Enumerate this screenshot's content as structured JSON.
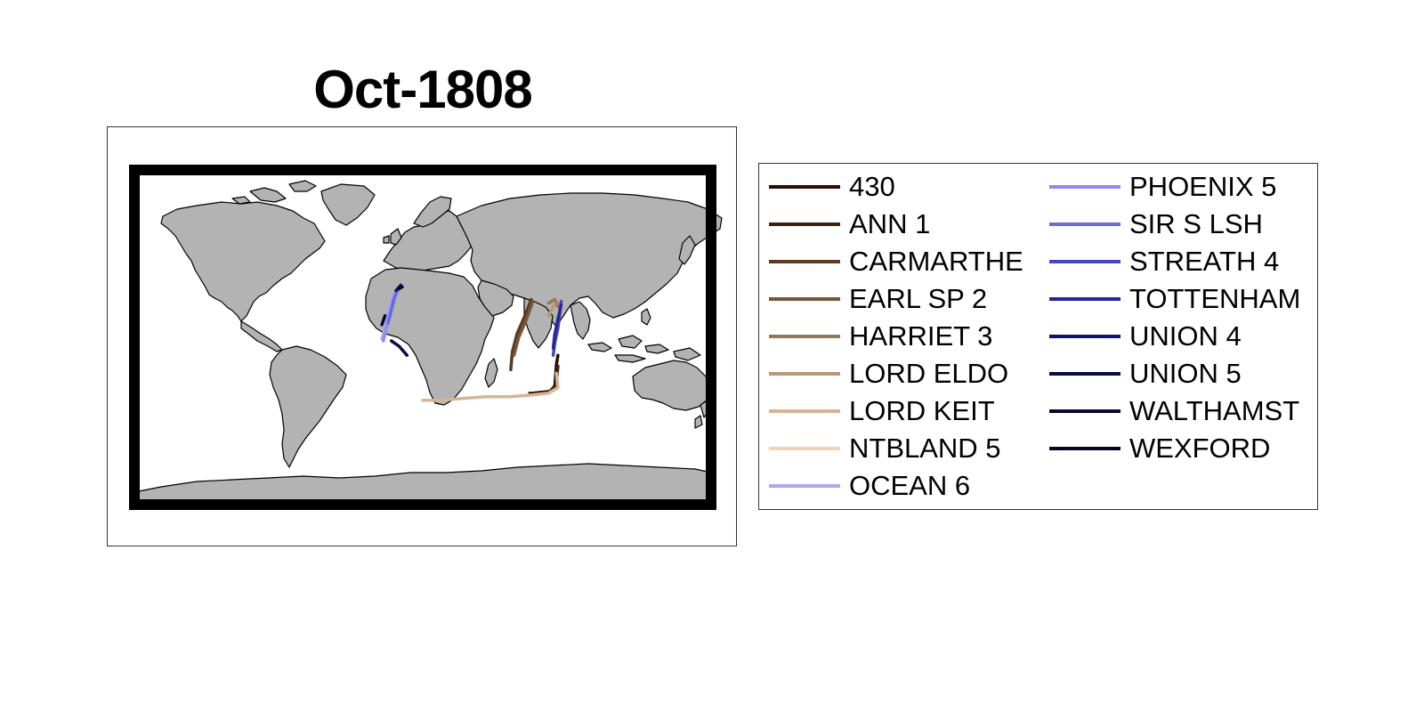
{
  "title": "Oct-1808",
  "map": {
    "land_color": "#b3b3b3",
    "coast_color": "#000000",
    "frame_color": "#000000"
  },
  "legend": {
    "items": [
      {
        "label": "430",
        "color": "#2b0d05"
      },
      {
        "label": "ANN 1",
        "color": "#3d2010"
      },
      {
        "label": "CARMARTHE",
        "color": "#5a3a22"
      },
      {
        "label": "EARL SP 2",
        "color": "#76573c"
      },
      {
        "label": "HARRIET 3",
        "color": "#967659"
      },
      {
        "label": "LORD ELDO",
        "color": "#b8977a"
      },
      {
        "label": "LORD KEIT",
        "color": "#d4b597"
      },
      {
        "label": "NTBLAND 5",
        "color": "#f2d4b8"
      },
      {
        "label": "OCEAN 6",
        "color": "#a9a9f2"
      },
      {
        "label": "PHOENIX 5",
        "color": "#8d8df0"
      },
      {
        "label": "SIR S LSH",
        "color": "#6a6ade"
      },
      {
        "label": "STREATH 4",
        "color": "#4646c0"
      },
      {
        "label": "TOTTENHAM",
        "color": "#262696"
      },
      {
        "label": "UNION 4",
        "color": "#111170"
      },
      {
        "label": "UNION 5",
        "color": "#0b0b4d"
      },
      {
        "label": "WALTHAMST",
        "color": "#090930"
      },
      {
        "label": "WEXFORD",
        "color": "#050520"
      }
    ]
  },
  "tracks": [
    {
      "ship": "430",
      "points": [
        [
          86,
          -10
        ],
        [
          85,
          -15
        ],
        [
          84,
          -27
        ],
        [
          81,
          -30
        ],
        [
          70,
          -31
        ]
      ]
    },
    {
      "ship": "ANN 1",
      "points": [
        [
          86,
          -16
        ],
        [
          85,
          -24
        ],
        [
          83,
          -29
        ],
        [
          80,
          -31
        ],
        [
          68,
          -31
        ]
      ]
    },
    {
      "ship": "CARMARTHE",
      "points": [
        [
          69,
          21
        ],
        [
          65,
          12
        ],
        [
          60,
          2
        ],
        [
          57,
          -8
        ],
        [
          56,
          -18
        ]
      ]
    },
    {
      "ship": "EARL SP 2",
      "points": [
        [
          70,
          20
        ],
        [
          66,
          10
        ],
        [
          61,
          0
        ],
        [
          58,
          -10
        ]
      ]
    },
    {
      "ship": "HARRIET 3",
      "points": [
        [
          80,
          19
        ],
        [
          84,
          21
        ],
        [
          86,
          17
        ]
      ]
    },
    {
      "ship": "LORD ELDO",
      "points": [
        [
          84,
          19
        ],
        [
          82,
          15
        ],
        [
          80,
          12
        ]
      ]
    },
    {
      "ship": "LORD KEIT",
      "points": [
        [
          85,
          -20
        ],
        [
          86,
          -28
        ],
        [
          80,
          -31
        ],
        [
          70,
          -32
        ],
        [
          55,
          -33
        ],
        [
          40,
          -33
        ],
        [
          25,
          -34
        ],
        [
          10,
          -35
        ],
        [
          0,
          -35
        ]
      ]
    },
    {
      "ship": "OCEAN 6",
      "points": [
        [
          -18,
          25
        ],
        [
          -20,
          20
        ],
        [
          -22,
          15
        ],
        [
          -23,
          10
        ],
        [
          -24,
          5
        ],
        [
          -26,
          -1
        ]
      ]
    },
    {
      "ship": "PHOENIX 5",
      "points": [
        [
          -17,
          26
        ],
        [
          -19,
          20
        ],
        [
          -21,
          13
        ],
        [
          -23,
          6
        ],
        [
          -25,
          -2
        ]
      ]
    },
    {
      "ship": "SIR S LSH",
      "points": [
        [
          -15,
          28
        ],
        [
          -18,
          22
        ],
        [
          -20,
          15
        ],
        [
          -22,
          8
        ]
      ]
    },
    {
      "ship": "STREATH 4",
      "points": [
        [
          88,
          20
        ],
        [
          87,
          12
        ],
        [
          86,
          5
        ],
        [
          84,
          -3
        ],
        [
          83,
          -10
        ]
      ]
    },
    {
      "ship": "TOTTENHAM",
      "points": [
        [
          88,
          18
        ],
        [
          86,
          10
        ],
        [
          84,
          2
        ],
        [
          83,
          -6
        ]
      ]
    },
    {
      "ship": "UNION 4",
      "points": [
        [
          -14,
          29
        ],
        [
          -17,
          26
        ]
      ]
    },
    {
      "ship": "UNION 5",
      "points": [
        [
          -20,
          -2
        ],
        [
          -15,
          -5
        ],
        [
          -10,
          -10
        ]
      ]
    },
    {
      "ship": "WALTHAMST",
      "points": [
        [
          -24,
          12
        ],
        [
          -26,
          7
        ]
      ]
    },
    {
      "ship": "WEXFORD",
      "points": [
        [
          -13,
          28
        ],
        [
          -15,
          27
        ]
      ]
    }
  ]
}
